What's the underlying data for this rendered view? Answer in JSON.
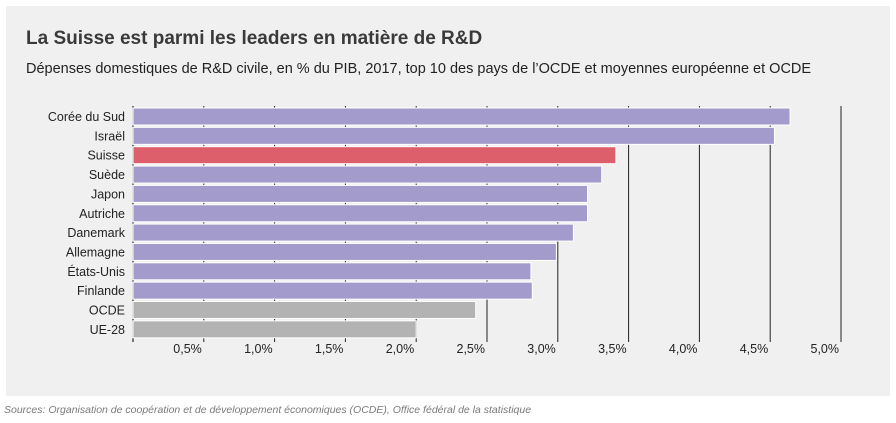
{
  "chart_data": {
    "type": "bar",
    "orientation": "horizontal",
    "title": "La Suisse est parmi les leaders en matière de R&D",
    "subtitle": "Dépenses domestiques de R&D civile, en % du PIB, 2017, top 10 des pays de l’OCDE et moyennes européenne et OCDE",
    "categories": [
      "Corée du Sud",
      "Israël",
      "Suisse",
      "Suède",
      "Japon",
      "Autriche",
      "Danemark",
      "Allemagne",
      "États-Unis",
      "Finlande",
      "OCDE",
      "UE-28"
    ],
    "values": [
      4.64,
      4.53,
      3.41,
      3.31,
      3.21,
      3.21,
      3.11,
      2.99,
      2.81,
      2.82,
      2.42,
      2.0
    ],
    "bar_colors": [
      "#a39bcb",
      "#a39bcb",
      "#de5f6c",
      "#a39bcb",
      "#a39bcb",
      "#a39bcb",
      "#a39bcb",
      "#a39bcb",
      "#a39bcb",
      "#a39bcb",
      "#b3b3b3",
      "#b3b3b3"
    ],
    "xlim": [
      0,
      5.0
    ],
    "xticks": [
      0.5,
      1.0,
      1.5,
      2.0,
      2.5,
      3.0,
      3.5,
      4.0,
      4.5,
      5.0
    ],
    "xtick_labels": [
      "0,5%",
      "1,0%",
      "1,5%",
      "2,0%",
      "2,5%",
      "3,0%",
      "3,5%",
      "4,0%",
      "4,5%",
      "5,0%"
    ],
    "grid": "vertical",
    "legend": "none"
  },
  "source": "Sources: Organisation de coopération et de développement économiques (OCDE), Office fédéral de la statistique"
}
